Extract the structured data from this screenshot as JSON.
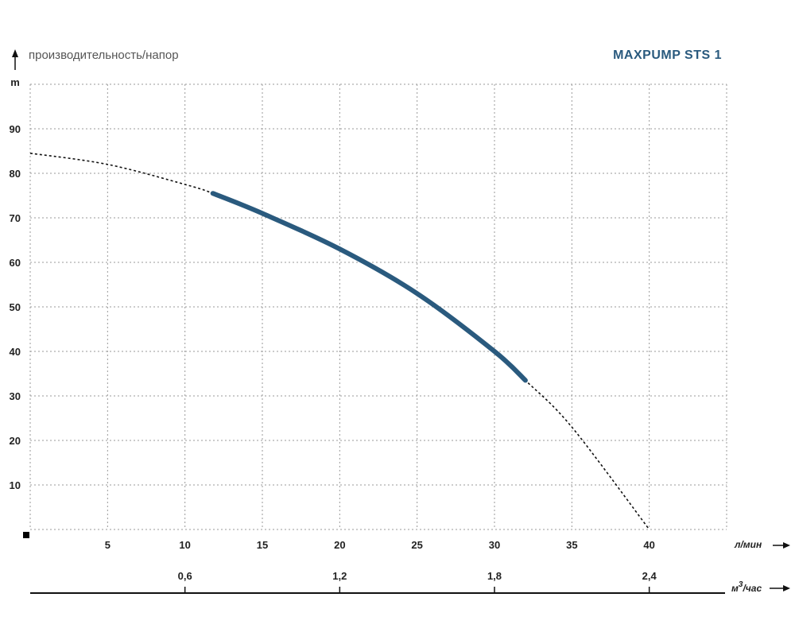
{
  "chart_data": {
    "type": "line",
    "title": "MAXPUMP STS 1",
    "ylabel": "производительность/напор",
    "yunit": "m",
    "xunit_primary": "л/мин",
    "xunit_secondary": "м³/час",
    "xunit_secondary_base": "м",
    "xunit_secondary_sup": "3",
    "xunit_secondary_rest": "/час",
    "xlim": [
      0,
      45
    ],
    "ylim": [
      0,
      100
    ],
    "xticks": [
      "5",
      "10",
      "15",
      "20",
      "25",
      "30",
      "35",
      "40"
    ],
    "yticks": [
      "10",
      "20",
      "30",
      "40",
      "50",
      "60",
      "70",
      "80",
      "90"
    ],
    "secondary_xticks": [
      "0,6",
      "1,2",
      "1,8",
      "2,4"
    ],
    "grid": true,
    "series": [
      {
        "role": "full-curve",
        "style": "dashed",
        "color": "#111111",
        "x": [
          0,
          5,
          10,
          11.8,
          15,
          20,
          25,
          30,
          32,
          35,
          40
        ],
        "y": [
          84.5,
          82,
          77.5,
          75.5,
          71,
          63,
          53,
          40,
          33.5,
          23,
          0
        ]
      },
      {
        "role": "working-range",
        "style": "solid",
        "color": "#2a5a7e",
        "x": [
          11.8,
          15,
          20,
          25,
          30,
          32
        ],
        "y": [
          75.5,
          71,
          63,
          53,
          40,
          33.5
        ]
      }
    ]
  }
}
